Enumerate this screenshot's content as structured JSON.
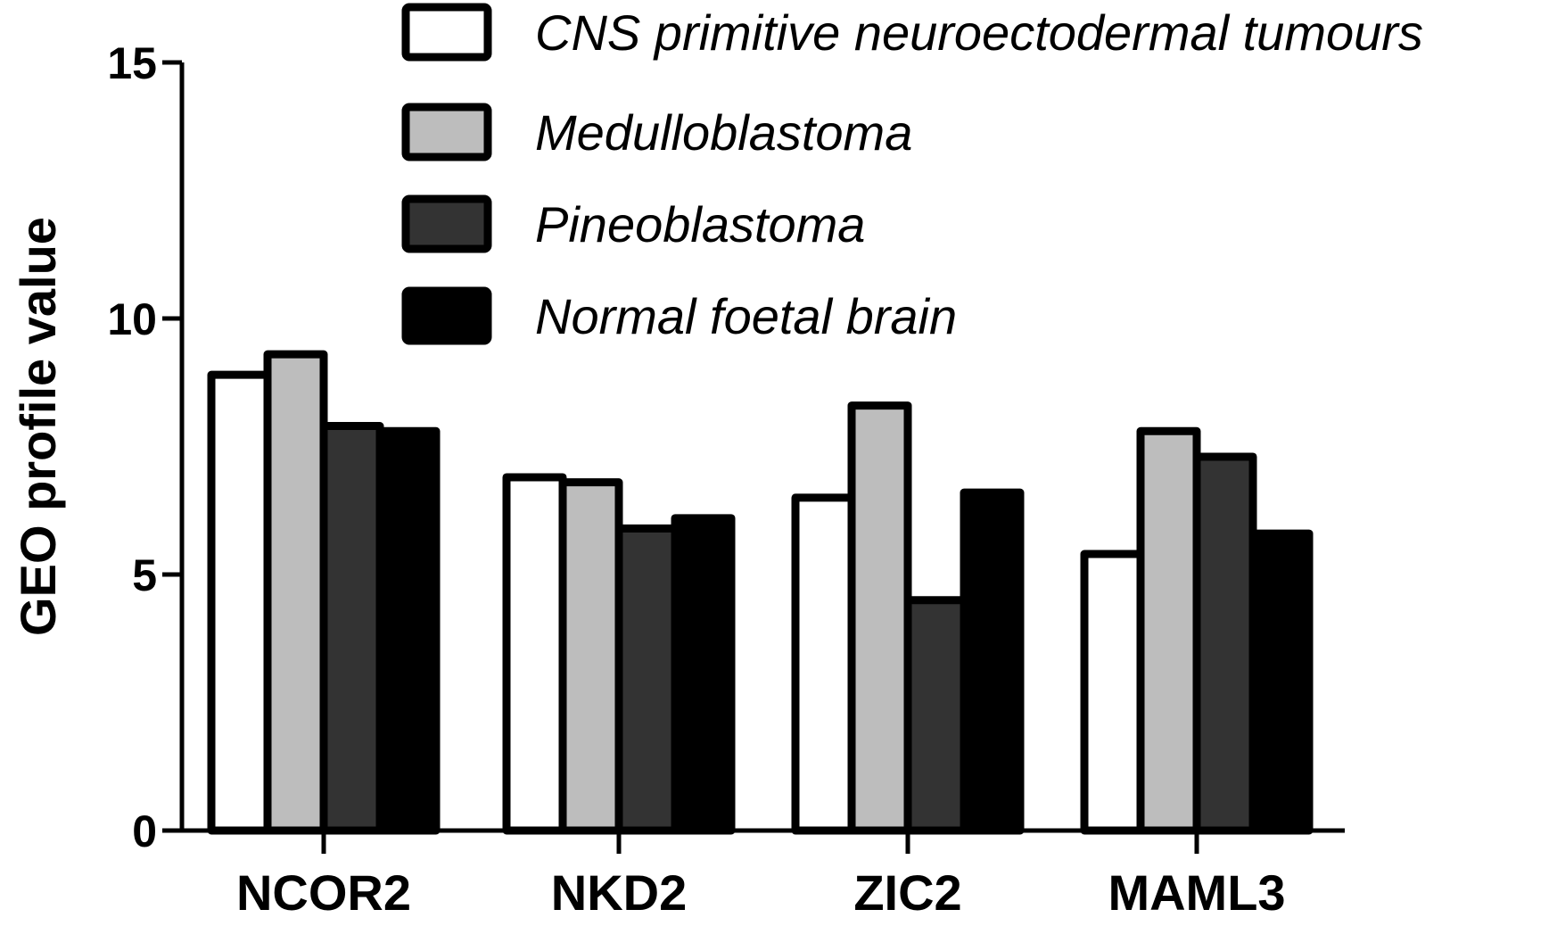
{
  "chart_data": {
    "type": "bar",
    "title": "",
    "xlabel": "",
    "ylabel": "GEO profile value",
    "ylim": [
      0,
      15
    ],
    "yticks": [
      0,
      5,
      10,
      15
    ],
    "grid": false,
    "legend_position": "top-right",
    "categories": [
      "NCOR2",
      "NKD2",
      "ZIC2",
      "MAML3"
    ],
    "series": [
      {
        "name": "CNS primitive neuroectodermal tumours",
        "color": "#ffffff",
        "values": [
          8.9,
          6.9,
          6.5,
          5.4
        ]
      },
      {
        "name": "Medulloblastoma",
        "color": "#bdbdbd",
        "values": [
          9.3,
          6.8,
          8.3,
          7.8
        ]
      },
      {
        "name": "Pineoblastoma",
        "color": "#333333",
        "values": [
          7.9,
          5.9,
          4.5,
          7.3
        ]
      },
      {
        "name": "Normal foetal brain",
        "color": "#000000",
        "values": [
          7.8,
          6.1,
          6.6,
          5.8
        ]
      }
    ]
  }
}
